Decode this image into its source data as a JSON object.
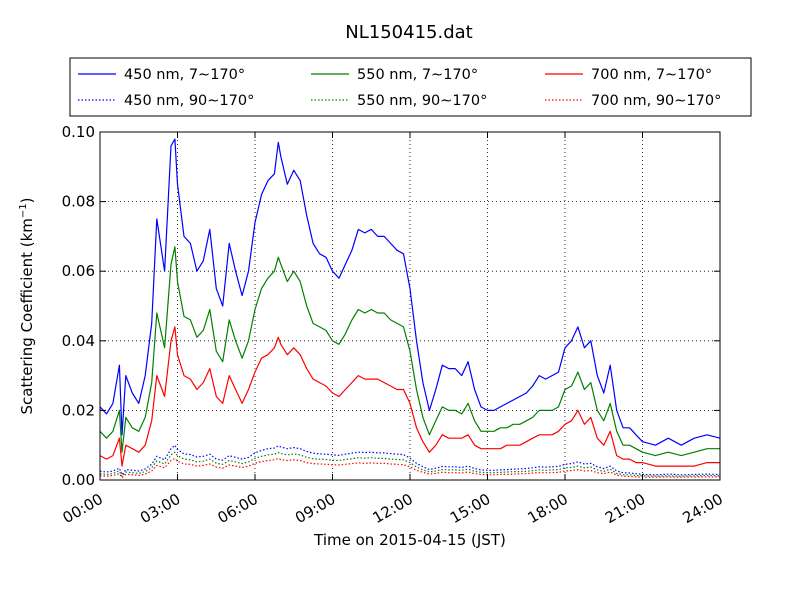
{
  "chart_data": {
    "type": "line",
    "title": "NL150415.dat",
    "xlabel": "Time on 2015-04-15 (JST)",
    "ylabel": "Scattering Coefficient (km",
    "ylabel_sup": "−1",
    "ylabel_end": ")",
    "x_unit": "hour",
    "xlim": [
      0,
      24
    ],
    "ylim": [
      0,
      0.1
    ],
    "xticks": [
      0,
      3,
      6,
      9,
      12,
      15,
      18,
      21,
      24
    ],
    "xtick_labels": [
      "00:00",
      "03:00",
      "06:00",
      "09:00",
      "12:00",
      "15:00",
      "18:00",
      "21:00",
      "24:00"
    ],
    "yticks": [
      0,
      0.02,
      0.04,
      0.06,
      0.08,
      0.1
    ],
    "ytick_labels": [
      "0.00",
      "0.02",
      "0.04",
      "0.06",
      "0.08",
      "0.10"
    ],
    "grid": true,
    "legend_position": "top, above plot, 3 columns",
    "x": [
      0,
      0.25,
      0.5,
      0.75,
      0.85,
      1,
      1.25,
      1.5,
      1.75,
      2,
      2.2,
      2.5,
      2.75,
      2.9,
      3,
      3.25,
      3.5,
      3.75,
      4,
      4.25,
      4.5,
      4.75,
      5,
      5.25,
      5.5,
      5.75,
      6,
      6.25,
      6.5,
      6.75,
      6.9,
      7,
      7.25,
      7.5,
      7.75,
      8,
      8.25,
      8.5,
      8.75,
      9,
      9.25,
      9.5,
      9.75,
      10,
      10.25,
      10.5,
      10.75,
      11,
      11.25,
      11.5,
      11.75,
      12,
      12.25,
      12.5,
      12.75,
      13,
      13.25,
      13.5,
      13.75,
      14,
      14.25,
      14.5,
      14.75,
      15,
      15.25,
      15.5,
      15.75,
      16,
      16.25,
      16.5,
      16.75,
      17,
      17.25,
      17.5,
      17.75,
      18,
      18.25,
      18.5,
      18.75,
      19,
      19.25,
      19.5,
      19.75,
      20,
      20.25,
      20.5,
      20.75,
      21,
      21.5,
      22,
      22.5,
      23,
      23.5,
      24
    ],
    "series": [
      {
        "name": "450 nm, 7∼170°",
        "color": "#0000ff",
        "dash": "solid",
        "values": [
          0.021,
          0.019,
          0.022,
          0.033,
          0.013,
          0.03,
          0.025,
          0.022,
          0.03,
          0.045,
          0.075,
          0.06,
          0.096,
          0.098,
          0.085,
          0.07,
          0.068,
          0.06,
          0.063,
          0.072,
          0.055,
          0.05,
          0.068,
          0.06,
          0.053,
          0.06,
          0.074,
          0.082,
          0.086,
          0.088,
          0.097,
          0.093,
          0.085,
          0.089,
          0.086,
          0.076,
          0.068,
          0.065,
          0.064,
          0.06,
          0.058,
          0.062,
          0.066,
          0.072,
          0.071,
          0.072,
          0.07,
          0.07,
          0.068,
          0.066,
          0.065,
          0.055,
          0.04,
          0.028,
          0.02,
          0.026,
          0.033,
          0.032,
          0.032,
          0.03,
          0.034,
          0.026,
          0.021,
          0.02,
          0.02,
          0.021,
          0.022,
          0.023,
          0.024,
          0.025,
          0.027,
          0.03,
          0.029,
          0.03,
          0.031,
          0.038,
          0.04,
          0.044,
          0.038,
          0.04,
          0.03,
          0.025,
          0.033,
          0.02,
          0.015,
          0.015,
          0.013,
          0.011,
          0.01,
          0.012,
          0.01,
          0.012,
          0.013,
          0.012
        ]
      },
      {
        "name": "550 nm, 7∼170°",
        "color": "#008000",
        "dash": "solid",
        "values": [
          0.014,
          0.012,
          0.014,
          0.02,
          0.008,
          0.018,
          0.015,
          0.014,
          0.018,
          0.028,
          0.048,
          0.038,
          0.062,
          0.067,
          0.057,
          0.047,
          0.046,
          0.041,
          0.043,
          0.049,
          0.037,
          0.034,
          0.046,
          0.04,
          0.035,
          0.04,
          0.049,
          0.055,
          0.058,
          0.06,
          0.064,
          0.062,
          0.057,
          0.06,
          0.057,
          0.05,
          0.045,
          0.044,
          0.043,
          0.04,
          0.039,
          0.042,
          0.046,
          0.049,
          0.048,
          0.049,
          0.048,
          0.048,
          0.046,
          0.045,
          0.044,
          0.037,
          0.026,
          0.018,
          0.013,
          0.017,
          0.021,
          0.02,
          0.02,
          0.019,
          0.022,
          0.017,
          0.014,
          0.014,
          0.014,
          0.015,
          0.015,
          0.016,
          0.016,
          0.017,
          0.018,
          0.02,
          0.02,
          0.02,
          0.021,
          0.026,
          0.027,
          0.031,
          0.026,
          0.028,
          0.02,
          0.017,
          0.022,
          0.014,
          0.01,
          0.01,
          0.009,
          0.008,
          0.007,
          0.008,
          0.007,
          0.008,
          0.009,
          0.009
        ]
      },
      {
        "name": "700 nm, 7∼170°",
        "color": "#ff0000",
        "dash": "solid",
        "values": [
          0.007,
          0.006,
          0.007,
          0.012,
          0.004,
          0.01,
          0.009,
          0.008,
          0.01,
          0.017,
          0.03,
          0.024,
          0.04,
          0.044,
          0.036,
          0.03,
          0.029,
          0.026,
          0.028,
          0.032,
          0.024,
          0.022,
          0.03,
          0.026,
          0.022,
          0.026,
          0.031,
          0.035,
          0.036,
          0.038,
          0.041,
          0.039,
          0.036,
          0.038,
          0.036,
          0.032,
          0.029,
          0.028,
          0.027,
          0.025,
          0.024,
          0.026,
          0.028,
          0.03,
          0.029,
          0.029,
          0.029,
          0.028,
          0.027,
          0.026,
          0.026,
          0.022,
          0.015,
          0.011,
          0.008,
          0.01,
          0.013,
          0.012,
          0.012,
          0.012,
          0.013,
          0.01,
          0.009,
          0.009,
          0.009,
          0.009,
          0.01,
          0.01,
          0.01,
          0.011,
          0.012,
          0.013,
          0.013,
          0.013,
          0.014,
          0.016,
          0.017,
          0.02,
          0.016,
          0.018,
          0.012,
          0.01,
          0.014,
          0.007,
          0.006,
          0.006,
          0.005,
          0.005,
          0.004,
          0.004,
          0.004,
          0.004,
          0.005,
          0.005
        ]
      },
      {
        "name": "450 nm, 90∼170°",
        "color": "#0000ff",
        "dash": "dotted",
        "values": [
          0.0025,
          0.0023,
          0.0026,
          0.0034,
          0.0015,
          0.003,
          0.0028,
          0.0026,
          0.0032,
          0.0045,
          0.0068,
          0.0058,
          0.009,
          0.01,
          0.0088,
          0.0075,
          0.0073,
          0.0066,
          0.0068,
          0.0074,
          0.006,
          0.0057,
          0.007,
          0.0065,
          0.006,
          0.0065,
          0.0078,
          0.0085,
          0.009,
          0.0092,
          0.0098,
          0.0095,
          0.009,
          0.0093,
          0.009,
          0.0082,
          0.0077,
          0.0075,
          0.0074,
          0.0072,
          0.0071,
          0.0074,
          0.0077,
          0.008,
          0.0079,
          0.008,
          0.0078,
          0.0078,
          0.0076,
          0.0074,
          0.0073,
          0.0063,
          0.0048,
          0.0038,
          0.003,
          0.0034,
          0.0039,
          0.0038,
          0.0038,
          0.0036,
          0.004,
          0.0033,
          0.0029,
          0.0028,
          0.0028,
          0.0029,
          0.003,
          0.0031,
          0.0032,
          0.0033,
          0.0035,
          0.0038,
          0.0037,
          0.0038,
          0.0039,
          0.0045,
          0.0047,
          0.0052,
          0.0046,
          0.0048,
          0.0038,
          0.0033,
          0.004,
          0.0026,
          0.0021,
          0.002,
          0.0018,
          0.0016,
          0.0015,
          0.0017,
          0.0015,
          0.0016,
          0.0017,
          0.0016
        ]
      },
      {
        "name": "550 nm, 90∼170°",
        "color": "#008000",
        "dash": "dotted",
        "values": [
          0.0018,
          0.0016,
          0.0019,
          0.0026,
          0.001,
          0.0023,
          0.0021,
          0.0019,
          0.0024,
          0.0035,
          0.0055,
          0.0046,
          0.0072,
          0.008,
          0.007,
          0.006,
          0.0058,
          0.0052,
          0.0054,
          0.006,
          0.0048,
          0.0045,
          0.0056,
          0.0052,
          0.0047,
          0.0052,
          0.0062,
          0.0068,
          0.0072,
          0.0074,
          0.0079,
          0.0076,
          0.0072,
          0.0075,
          0.0072,
          0.0065,
          0.0061,
          0.006,
          0.0059,
          0.0057,
          0.0056,
          0.0059,
          0.0061,
          0.0064,
          0.0063,
          0.0064,
          0.0062,
          0.0062,
          0.006,
          0.0059,
          0.0058,
          0.005,
          0.0037,
          0.0029,
          0.0023,
          0.0026,
          0.003,
          0.0029,
          0.0029,
          0.0028,
          0.0031,
          0.0025,
          0.0022,
          0.0021,
          0.0021,
          0.0022,
          0.0023,
          0.0024,
          0.0024,
          0.0025,
          0.0027,
          0.0029,
          0.0028,
          0.0029,
          0.003,
          0.0035,
          0.0036,
          0.004,
          0.0035,
          0.0037,
          0.0029,
          0.0025,
          0.0031,
          0.0019,
          0.0015,
          0.0015,
          0.0013,
          0.0012,
          0.0011,
          0.0012,
          0.0011,
          0.0012,
          0.0013,
          0.0012
        ]
      },
      {
        "name": "700 nm, 90∼170°",
        "color": "#ff0000",
        "dash": "dotted",
        "values": [
          0.0012,
          0.0011,
          0.0013,
          0.0018,
          0.0007,
          0.0016,
          0.0015,
          0.0013,
          0.0017,
          0.0026,
          0.0042,
          0.0035,
          0.0056,
          0.0062,
          0.0054,
          0.0046,
          0.0045,
          0.004,
          0.0042,
          0.0046,
          0.0037,
          0.0034,
          0.0043,
          0.004,
          0.0036,
          0.004,
          0.0048,
          0.0053,
          0.0056,
          0.0058,
          0.0062,
          0.0059,
          0.0056,
          0.0058,
          0.0056,
          0.005,
          0.0047,
          0.0046,
          0.0045,
          0.0044,
          0.0043,
          0.0045,
          0.0047,
          0.0049,
          0.0048,
          0.0049,
          0.0048,
          0.0048,
          0.0046,
          0.0045,
          0.0044,
          0.0038,
          0.0028,
          0.0022,
          0.0017,
          0.0019,
          0.0022,
          0.0021,
          0.0021,
          0.002,
          0.0023,
          0.0018,
          0.0016,
          0.0015,
          0.0015,
          0.0016,
          0.0016,
          0.0017,
          0.0018,
          0.0018,
          0.002,
          0.0021,
          0.0021,
          0.0021,
          0.0022,
          0.0026,
          0.0027,
          0.003,
          0.0026,
          0.0027,
          0.0021,
          0.0018,
          0.0023,
          0.0014,
          0.0011,
          0.001,
          0.0009,
          0.0008,
          0.0008,
          0.0009,
          0.0008,
          0.0009,
          0.0009,
          0.0009
        ]
      }
    ]
  }
}
